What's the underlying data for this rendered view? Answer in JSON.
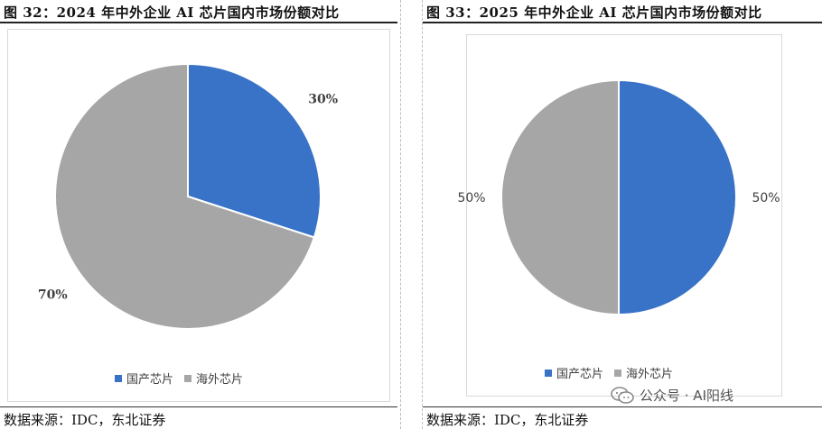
{
  "panels": [
    {
      "figure_title": "图 32：2024 年中外企业 AI 芯片国内市场份额对比",
      "source": "数据来源：IDC，东北证券"
    },
    {
      "figure_title": "图 33：2025 年中外企业 AI 芯片国内市场份额对比",
      "source": "数据来源：IDC，东北证券"
    }
  ],
  "watermark": "公众号 · AI阳线",
  "colors": {
    "domestic": "#3873C8",
    "overseas": "#A6A6A6"
  },
  "chart_data": [
    {
      "type": "pie",
      "title": "",
      "start_angle": "12 o'clock, clockwise",
      "legend_position": "bottom",
      "slices": [
        {
          "label": "国产芯片",
          "value": 30,
          "display": "30%"
        },
        {
          "label": "海外芯片",
          "value": 70,
          "display": "70%"
        }
      ]
    },
    {
      "type": "pie",
      "title": "",
      "start_angle": "12 o'clock, clockwise",
      "legend_position": "bottom",
      "slices": [
        {
          "label": "国产芯片",
          "value": 50,
          "display": "50%"
        },
        {
          "label": "海外芯片",
          "value": 50,
          "display": "50%"
        }
      ]
    }
  ]
}
